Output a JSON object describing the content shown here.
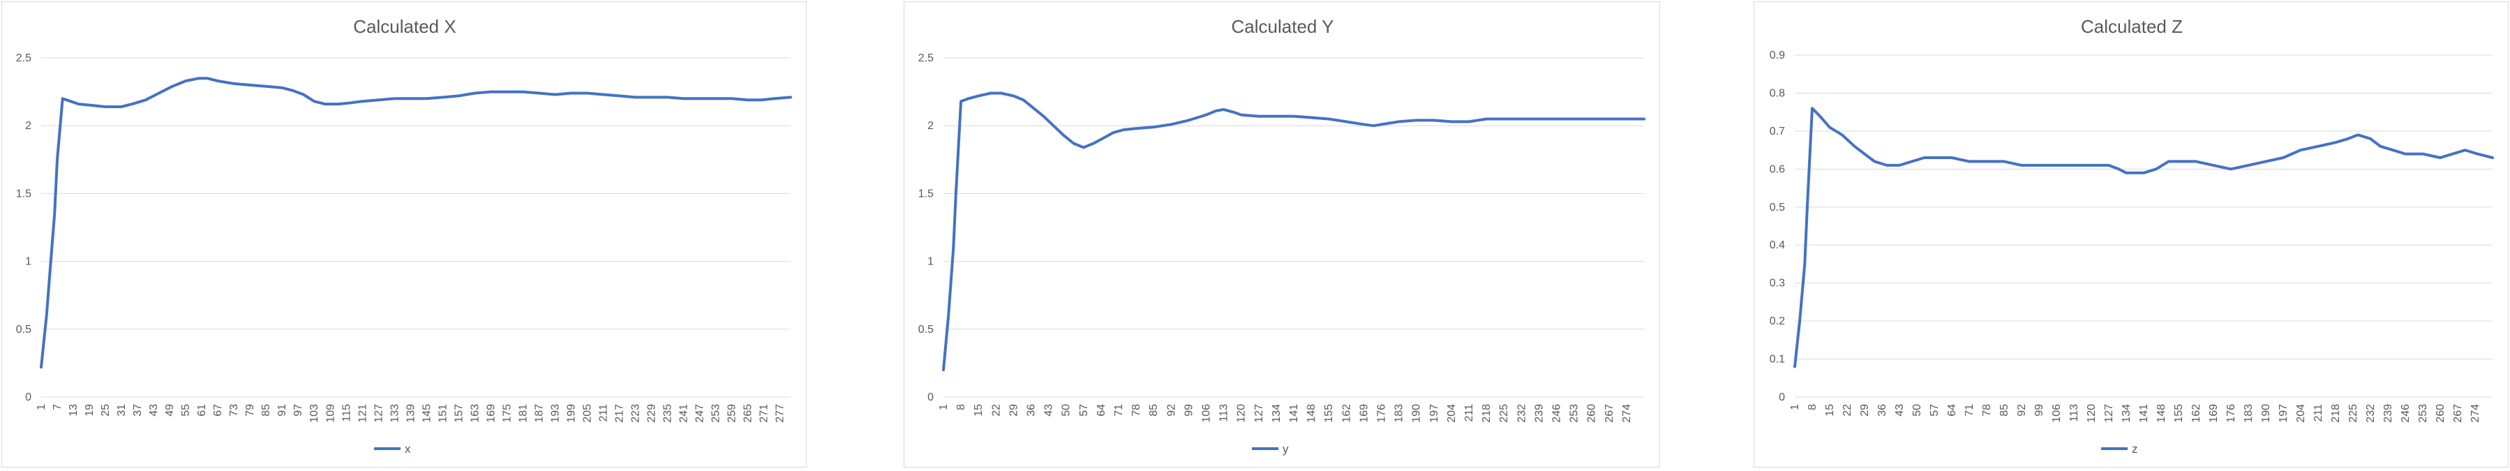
{
  "colors": {
    "line": "#4472C4",
    "grid": "#d9d9d9",
    "text": "#595959"
  },
  "chart_data": [
    {
      "type": "line",
      "title": "Calculated X",
      "legend": [
        "x"
      ],
      "legend_position": "bottom",
      "grid": true,
      "ylim": [
        0,
        2.5
      ],
      "yticks": [
        "0",
        "0.5",
        "1",
        "1.5",
        "2",
        "2.5"
      ],
      "xticks": [
        "1",
        "7",
        "13",
        "19",
        "25",
        "31",
        "37",
        "43",
        "49",
        "55",
        "61",
        "67",
        "73",
        "79",
        "85",
        "91",
        "97",
        "103",
        "109",
        "115",
        "121",
        "127",
        "133",
        "139",
        "145",
        "151",
        "157",
        "163",
        "169",
        "175",
        "181",
        "187",
        "193",
        "199",
        "205",
        "211",
        "217",
        "223",
        "229",
        "235",
        "241",
        "247",
        "253",
        "259",
        "265",
        "271",
        "277"
      ],
      "x_range": [
        1,
        281
      ],
      "series": [
        {
          "name": "x",
          "points": [
            [
              1,
              0.22
            ],
            [
              3,
              0.6
            ],
            [
              5,
              1.1
            ],
            [
              6,
              1.35
            ],
            [
              7,
              1.75
            ],
            [
              9,
              2.2
            ],
            [
              12,
              2.18
            ],
            [
              15,
              2.16
            ],
            [
              20,
              2.15
            ],
            [
              25,
              2.14
            ],
            [
              31,
              2.14
            ],
            [
              35,
              2.16
            ],
            [
              40,
              2.19
            ],
            [
              45,
              2.24
            ],
            [
              50,
              2.29
            ],
            [
              55,
              2.33
            ],
            [
              60,
              2.35
            ],
            [
              63,
              2.35
            ],
            [
              67,
              2.33
            ],
            [
              73,
              2.31
            ],
            [
              79,
              2.3
            ],
            [
              85,
              2.29
            ],
            [
              91,
              2.28
            ],
            [
              95,
              2.26
            ],
            [
              99,
              2.23
            ],
            [
              103,
              2.18
            ],
            [
              107,
              2.16
            ],
            [
              112,
              2.16
            ],
            [
              117,
              2.17
            ],
            [
              121,
              2.18
            ],
            [
              127,
              2.19
            ],
            [
              133,
              2.2
            ],
            [
              139,
              2.2
            ],
            [
              145,
              2.2
            ],
            [
              151,
              2.21
            ],
            [
              157,
              2.22
            ],
            [
              163,
              2.24
            ],
            [
              169,
              2.25
            ],
            [
              175,
              2.25
            ],
            [
              181,
              2.25
            ],
            [
              187,
              2.24
            ],
            [
              193,
              2.23
            ],
            [
              199,
              2.24
            ],
            [
              205,
              2.24
            ],
            [
              211,
              2.23
            ],
            [
              217,
              2.22
            ],
            [
              223,
              2.21
            ],
            [
              229,
              2.21
            ],
            [
              235,
              2.21
            ],
            [
              241,
              2.2
            ],
            [
              247,
              2.2
            ],
            [
              253,
              2.2
            ],
            [
              259,
              2.2
            ],
            [
              265,
              2.19
            ],
            [
              270,
              2.19
            ],
            [
              275,
              2.2
            ],
            [
              281,
              2.21
            ]
          ]
        }
      ]
    },
    {
      "type": "line",
      "title": "Calculated Y",
      "legend": [
        "y"
      ],
      "legend_position": "bottom",
      "grid": true,
      "ylim": [
        0,
        2.5
      ],
      "yticks": [
        "0",
        "0.5",
        "1",
        "1.5",
        "2",
        "2.5"
      ],
      "xticks": [
        "1",
        "8",
        "15",
        "22",
        "29",
        "36",
        "43",
        "50",
        "57",
        "64",
        "71",
        "78",
        "85",
        "92",
        "99",
        "106",
        "113",
        "120",
        "127",
        "134",
        "141",
        "148",
        "155",
        "162",
        "169",
        "176",
        "183",
        "190",
        "197",
        "204",
        "211",
        "218",
        "225",
        "232",
        "239",
        "246",
        "253",
        "260",
        "267",
        "274"
      ],
      "x_range": [
        1,
        281
      ],
      "series": [
        {
          "name": "y",
          "points": [
            [
              1,
              0.2
            ],
            [
              3,
              0.6
            ],
            [
              5,
              1.1
            ],
            [
              6,
              1.5
            ],
            [
              8,
              2.18
            ],
            [
              11,
              2.2
            ],
            [
              15,
              2.22
            ],
            [
              20,
              2.24
            ],
            [
              24,
              2.24
            ],
            [
              29,
              2.22
            ],
            [
              33,
              2.19
            ],
            [
              37,
              2.13
            ],
            [
              41,
              2.07
            ],
            [
              45,
              2.0
            ],
            [
              49,
              1.93
            ],
            [
              53,
              1.87
            ],
            [
              57,
              1.84
            ],
            [
              61,
              1.87
            ],
            [
              65,
              1.91
            ],
            [
              69,
              1.95
            ],
            [
              73,
              1.97
            ],
            [
              78,
              1.98
            ],
            [
              85,
              1.99
            ],
            [
              92,
              2.01
            ],
            [
              99,
              2.04
            ],
            [
              106,
              2.08
            ],
            [
              110,
              2.11
            ],
            [
              113,
              2.12
            ],
            [
              117,
              2.1
            ],
            [
              120,
              2.08
            ],
            [
              127,
              2.07
            ],
            [
              134,
              2.07
            ],
            [
              141,
              2.07
            ],
            [
              148,
              2.06
            ],
            [
              155,
              2.05
            ],
            [
              162,
              2.03
            ],
            [
              169,
              2.01
            ],
            [
              173,
              2.0
            ],
            [
              176,
              2.01
            ],
            [
              183,
              2.03
            ],
            [
              190,
              2.04
            ],
            [
              197,
              2.04
            ],
            [
              204,
              2.03
            ],
            [
              211,
              2.03
            ],
            [
              218,
              2.05
            ],
            [
              225,
              2.05
            ],
            [
              232,
              2.05
            ],
            [
              239,
              2.05
            ],
            [
              246,
              2.05
            ],
            [
              253,
              2.05
            ],
            [
              260,
              2.05
            ],
            [
              267,
              2.05
            ],
            [
              274,
              2.05
            ],
            [
              281,
              2.05
            ]
          ]
        }
      ]
    },
    {
      "type": "line",
      "title": "Calculated Z",
      "legend": [
        "z"
      ],
      "legend_position": "bottom",
      "grid": true,
      "ylim": [
        0,
        0.9
      ],
      "yticks": [
        "0",
        "0.1",
        "0.2",
        "0.3",
        "0.4",
        "0.5",
        "0.6",
        "0.7",
        "0.8",
        "0.9"
      ],
      "xticks": [
        "1",
        "8",
        "15",
        "22",
        "29",
        "36",
        "43",
        "50",
        "57",
        "64",
        "71",
        "78",
        "85",
        "92",
        "99",
        "106",
        "113",
        "120",
        "127",
        "134",
        "141",
        "148",
        "155",
        "162",
        "169",
        "176",
        "183",
        "190",
        "197",
        "204",
        "211",
        "218",
        "225",
        "232",
        "239",
        "246",
        "253",
        "260",
        "267",
        "274"
      ],
      "x_range": [
        1,
        281
      ],
      "series": [
        {
          "name": "z",
          "points": [
            [
              1,
              0.08
            ],
            [
              3,
              0.2
            ],
            [
              5,
              0.35
            ],
            [
              6,
              0.5
            ],
            [
              8,
              0.76
            ],
            [
              11,
              0.74
            ],
            [
              15,
              0.71
            ],
            [
              20,
              0.69
            ],
            [
              25,
              0.66
            ],
            [
              29,
              0.64
            ],
            [
              33,
              0.62
            ],
            [
              38,
              0.61
            ],
            [
              43,
              0.61
            ],
            [
              48,
              0.62
            ],
            [
              53,
              0.63
            ],
            [
              57,
              0.63
            ],
            [
              64,
              0.63
            ],
            [
              71,
              0.62
            ],
            [
              78,
              0.62
            ],
            [
              85,
              0.62
            ],
            [
              92,
              0.61
            ],
            [
              99,
              0.61
            ],
            [
              106,
              0.61
            ],
            [
              113,
              0.61
            ],
            [
              120,
              0.61
            ],
            [
              127,
              0.61
            ],
            [
              131,
              0.6
            ],
            [
              134,
              0.59
            ],
            [
              141,
              0.59
            ],
            [
              146,
              0.6
            ],
            [
              151,
              0.62
            ],
            [
              155,
              0.62
            ],
            [
              162,
              0.62
            ],
            [
              169,
              0.61
            ],
            [
              176,
              0.6
            ],
            [
              183,
              0.61
            ],
            [
              190,
              0.62
            ],
            [
              197,
              0.63
            ],
            [
              204,
              0.65
            ],
            [
              211,
              0.66
            ],
            [
              218,
              0.67
            ],
            [
              223,
              0.68
            ],
            [
              227,
              0.69
            ],
            [
              232,
              0.68
            ],
            [
              236,
              0.66
            ],
            [
              241,
              0.65
            ],
            [
              246,
              0.64
            ],
            [
              253,
              0.64
            ],
            [
              260,
              0.63
            ],
            [
              265,
              0.64
            ],
            [
              270,
              0.65
            ],
            [
              275,
              0.64
            ],
            [
              281,
              0.63
            ]
          ]
        }
      ]
    }
  ]
}
